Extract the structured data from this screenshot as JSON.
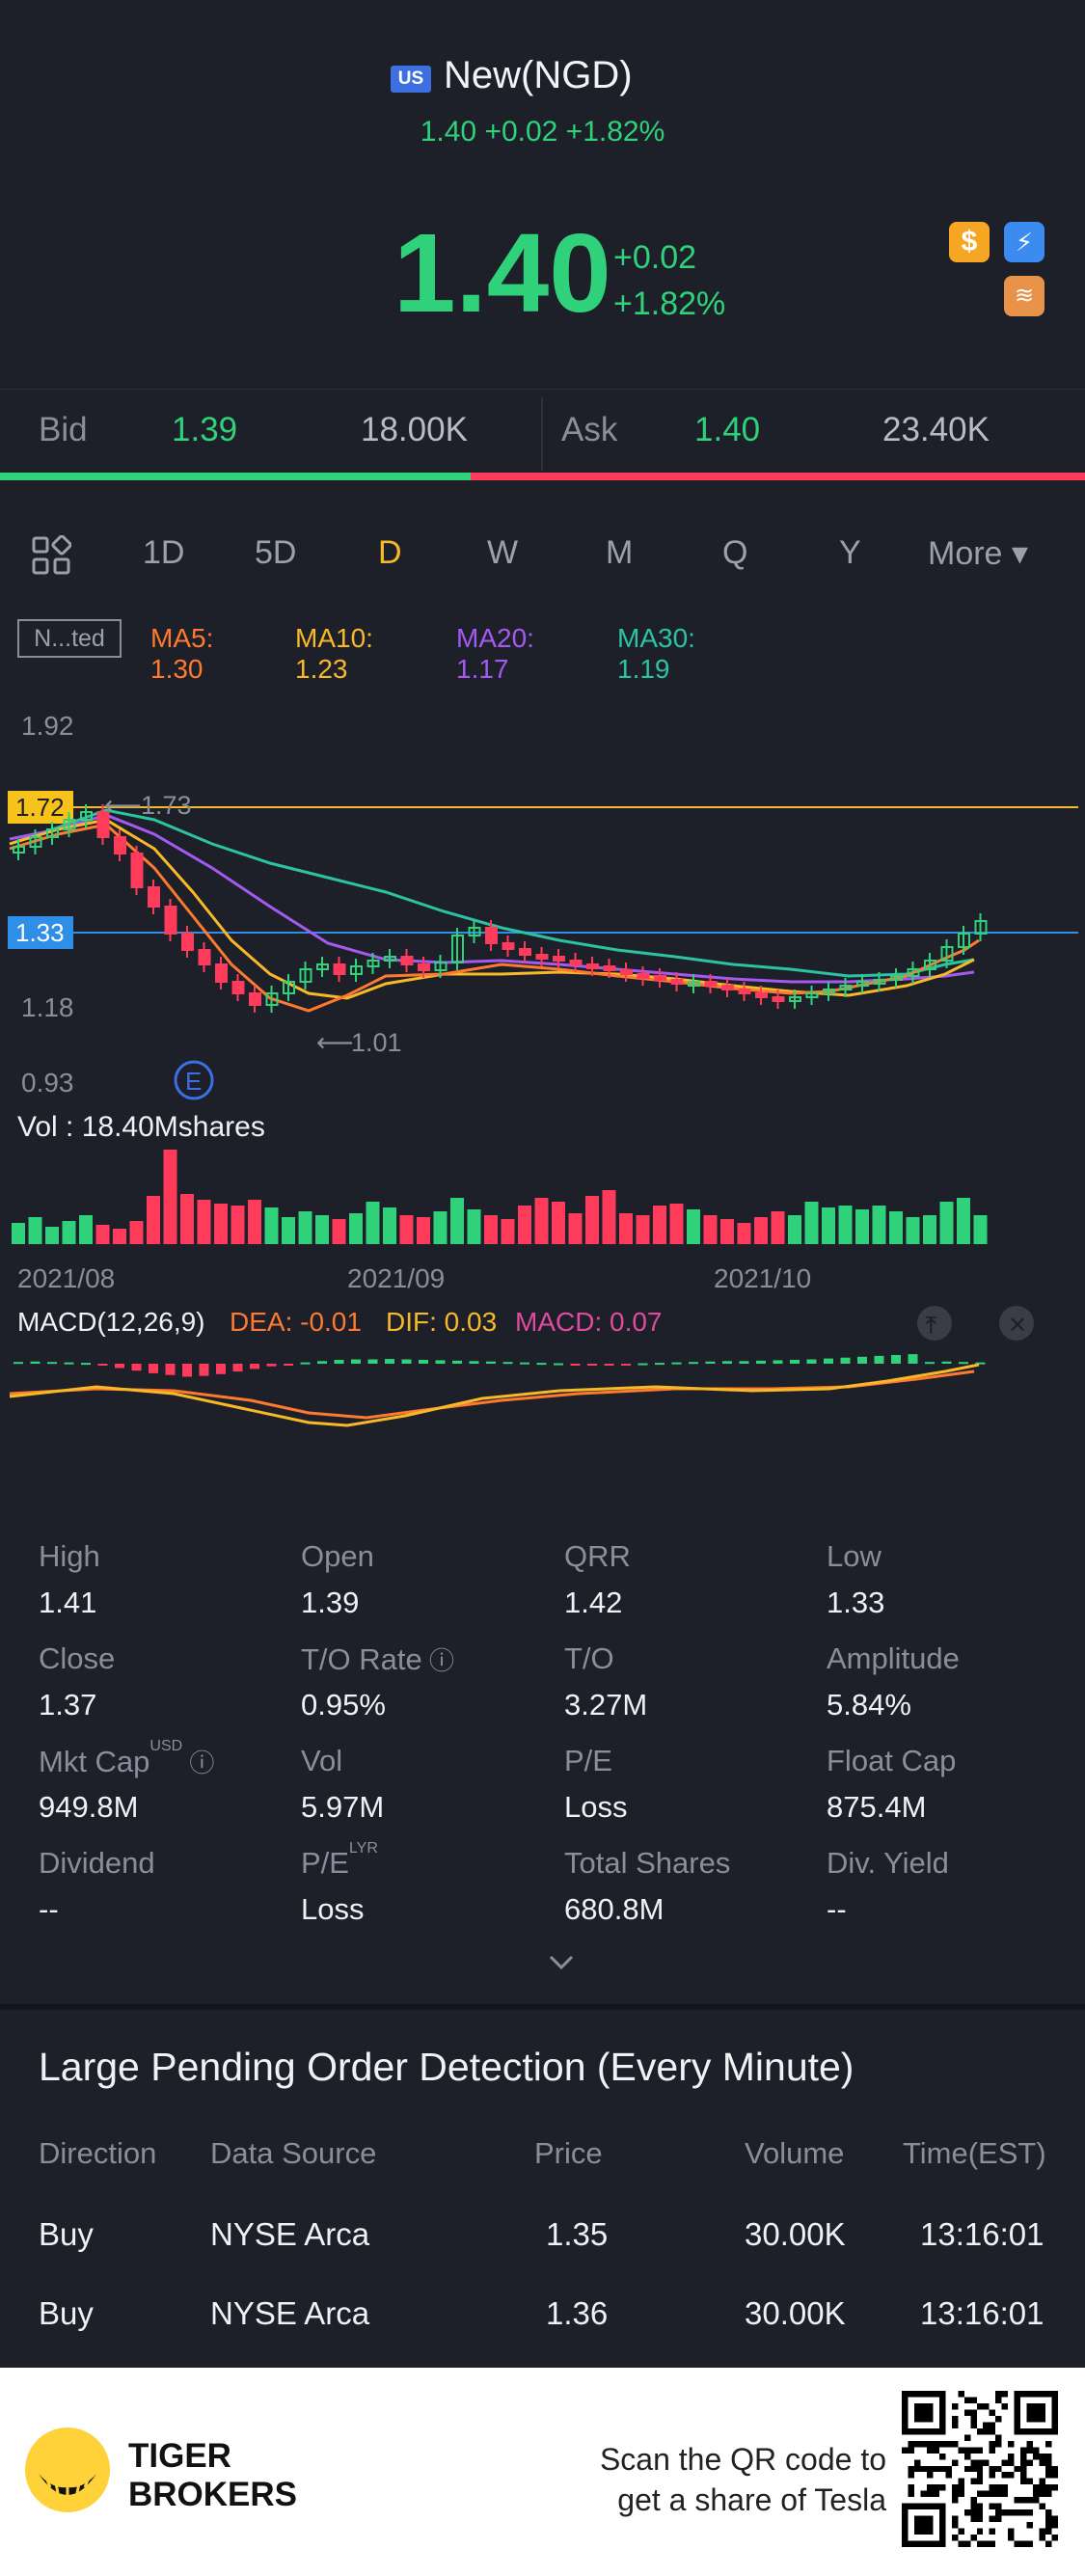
{
  "header": {
    "market_badge": "US",
    "title": "New(NGD)",
    "subline": "1.40 +0.02 +1.82%",
    "price": "1.40",
    "change": "+0.02",
    "change_pct": "+1.82%",
    "icons": [
      "dollar-icon",
      "flash-icon",
      "layers-icon"
    ]
  },
  "quote": {
    "bid_label": "Bid",
    "bid_price": "1.39",
    "bid_size": "18.00K",
    "ask_label": "Ask",
    "ask_price": "1.40",
    "ask_size": "23.40K",
    "bid_share": 0.434
  },
  "periods": [
    "1D",
    "5D",
    "D",
    "W",
    "M",
    "Q",
    "Y",
    "More ▾"
  ],
  "active_period": "D",
  "indicator": {
    "label": "N...ted",
    "ma5": "MA5: 1.30",
    "ma10": "MA10: 1.23",
    "ma20": "MA20: 1.17",
    "ma30": "MA30: 1.19"
  },
  "chart_data": {
    "type": "candlestick",
    "y_ticks": [
      "1.92",
      "1.18",
      "0.93"
    ],
    "x_ticks": [
      "2021/08",
      "2021/09",
      "2021/10"
    ],
    "price_tags": {
      "high_line": "1.72",
      "current_line": "1.33"
    },
    "annotations": {
      "max": "1.73",
      "min": "1.01",
      "event": "E"
    },
    "volume_label": "Vol  : 18.40Mshares",
    "macd": {
      "label": "MACD(12,26,9)",
      "dea": "DEA: -0.01",
      "dif": "DIF: 0.03",
      "macd": "MACD: 0.07"
    },
    "colors": {
      "up": "#2fd27a",
      "down": "#ff3b5c",
      "ma5": "#ff7a2e",
      "ma10": "#f7b928",
      "ma20": "#a45af0",
      "ma30": "#2bc3a4"
    }
  },
  "stats": [
    {
      "label": "High",
      "value": "1.41"
    },
    {
      "label": "Open",
      "value": "1.39"
    },
    {
      "label": "QRR",
      "value": "1.42"
    },
    {
      "label": "Low",
      "value": "1.33"
    },
    {
      "label": "Close",
      "value": "1.37"
    },
    {
      "label": "T/O Rate",
      "value": "0.95%"
    },
    {
      "label": "T/O",
      "value": "3.27M"
    },
    {
      "label": "Amplitude",
      "value": "5.84%"
    },
    {
      "label": "Mkt Cap",
      "value": "949.8M",
      "sup": "USD"
    },
    {
      "label": "Vol",
      "value": "5.97M"
    },
    {
      "label": "P/E",
      "value": "Loss"
    },
    {
      "label": "Float Cap",
      "value": "875.4M"
    },
    {
      "label": "Dividend",
      "value": "--"
    },
    {
      "label": "P/E",
      "value": "Loss",
      "sup": "LYR"
    },
    {
      "label": "Total Shares",
      "value": "680.8M"
    },
    {
      "label": "Div. Yield",
      "value": "--"
    }
  ],
  "lpo": {
    "title": "Large Pending Order Detection (Every Minute)",
    "headers": [
      "Direction",
      "Data Source",
      "Price",
      "Volume",
      "Time(EST)"
    ],
    "rows": [
      [
        "Buy",
        "NYSE Arca",
        "1.35",
        "30.00K",
        "13:16:01"
      ],
      [
        "Buy",
        "NYSE Arca",
        "1.36",
        "30.00K",
        "13:16:01"
      ]
    ]
  },
  "footer": {
    "brand_line1": "TIGER",
    "brand_line2": "BROKERS",
    "scan_line1": "Scan the QR code to",
    "scan_line2": "get a share of Tesla"
  }
}
